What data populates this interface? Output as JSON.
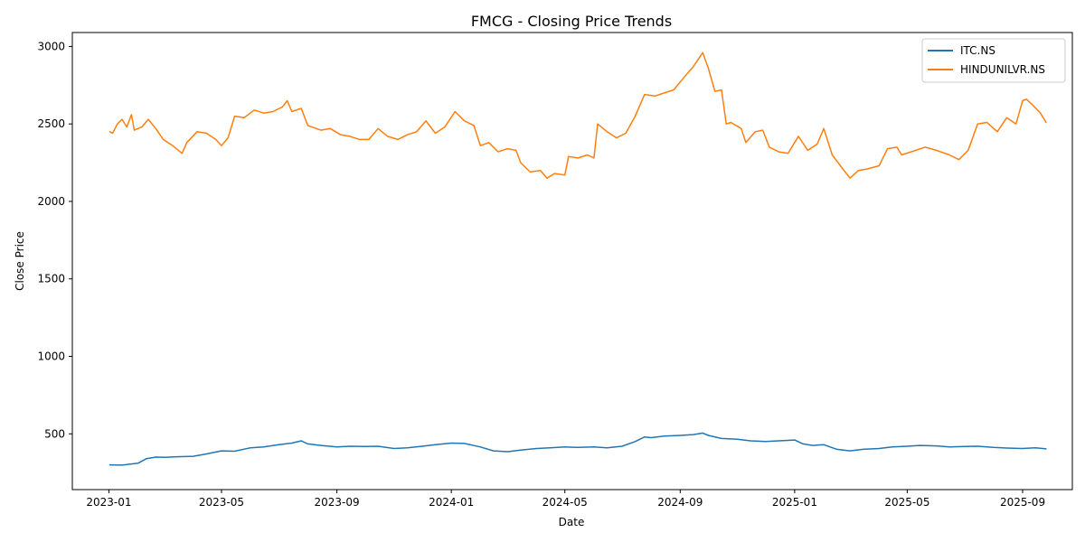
{
  "chart_data": {
    "type": "line",
    "title": "FMCG - Closing Price Trends",
    "xlabel": "Date",
    "ylabel": "Close Price",
    "x_range": [
      "2022-11-23",
      "2025-10-24"
    ],
    "ylim": [
      140,
      3090
    ],
    "x_ticks": [
      "2023-01",
      "2023-05",
      "2023-09",
      "2024-01",
      "2024-05",
      "2024-09",
      "2025-01",
      "2025-05",
      "2025-09"
    ],
    "y_ticks": [
      500,
      1000,
      1500,
      2000,
      2500,
      3000
    ],
    "grid": false,
    "legend_position": "upper right",
    "series": [
      {
        "name": "ITC.NS",
        "color": "#1f77b4",
        "points": [
          [
            "2023-01-02",
            300
          ],
          [
            "2023-01-15",
            298
          ],
          [
            "2023-02-01",
            310
          ],
          [
            "2023-02-10",
            340
          ],
          [
            "2023-02-20",
            350
          ],
          [
            "2023-03-01",
            348
          ],
          [
            "2023-03-15",
            352
          ],
          [
            "2023-04-01",
            355
          ],
          [
            "2023-04-15",
            370
          ],
          [
            "2023-05-01",
            390
          ],
          [
            "2023-05-15",
            388
          ],
          [
            "2023-06-01",
            410
          ],
          [
            "2023-06-15",
            415
          ],
          [
            "2023-07-01",
            430
          ],
          [
            "2023-07-15",
            440
          ],
          [
            "2023-07-25",
            455
          ],
          [
            "2023-08-01",
            435
          ],
          [
            "2023-08-15",
            425
          ],
          [
            "2023-09-01",
            415
          ],
          [
            "2023-09-15",
            420
          ],
          [
            "2023-10-01",
            418
          ],
          [
            "2023-10-15",
            420
          ],
          [
            "2023-11-01",
            405
          ],
          [
            "2023-11-15",
            410
          ],
          [
            "2023-12-01",
            420
          ],
          [
            "2023-12-15",
            430
          ],
          [
            "2024-01-01",
            440
          ],
          [
            "2024-01-15",
            438
          ],
          [
            "2024-02-01",
            415
          ],
          [
            "2024-02-15",
            390
          ],
          [
            "2024-03-01",
            385
          ],
          [
            "2024-03-15",
            395
          ],
          [
            "2024-04-01",
            405
          ],
          [
            "2024-04-15",
            410
          ],
          [
            "2024-05-01",
            415
          ],
          [
            "2024-05-15",
            412
          ],
          [
            "2024-06-01",
            415
          ],
          [
            "2024-06-15",
            410
          ],
          [
            "2024-07-01",
            420
          ],
          [
            "2024-07-15",
            450
          ],
          [
            "2024-07-25",
            480
          ],
          [
            "2024-08-01",
            475
          ],
          [
            "2024-08-15",
            485
          ],
          [
            "2024-09-01",
            490
          ],
          [
            "2024-09-15",
            495
          ],
          [
            "2024-09-25",
            505
          ],
          [
            "2024-10-01",
            490
          ],
          [
            "2024-10-15",
            470
          ],
          [
            "2024-11-01",
            465
          ],
          [
            "2024-11-15",
            455
          ],
          [
            "2024-12-01",
            450
          ],
          [
            "2024-12-15",
            455
          ],
          [
            "2025-01-01",
            460
          ],
          [
            "2025-01-10",
            435
          ],
          [
            "2025-01-20",
            425
          ],
          [
            "2025-02-01",
            430
          ],
          [
            "2025-02-15",
            400
          ],
          [
            "2025-03-01",
            390
          ],
          [
            "2025-03-15",
            400
          ],
          [
            "2025-04-01",
            405
          ],
          [
            "2025-04-15",
            415
          ],
          [
            "2025-05-01",
            420
          ],
          [
            "2025-05-15",
            425
          ],
          [
            "2025-06-01",
            422
          ],
          [
            "2025-06-15",
            415
          ],
          [
            "2025-07-01",
            418
          ],
          [
            "2025-07-15",
            420
          ],
          [
            "2025-08-01",
            412
          ],
          [
            "2025-08-15",
            408
          ],
          [
            "2025-09-01",
            405
          ],
          [
            "2025-09-15",
            410
          ],
          [
            "2025-09-26",
            403
          ]
        ]
      },
      {
        "name": "HINDUNILVR.NS",
        "color": "#ff7f0e",
        "points": [
          [
            "2023-01-02",
            2450
          ],
          [
            "2023-01-05",
            2440
          ],
          [
            "2023-01-10",
            2500
          ],
          [
            "2023-01-15",
            2530
          ],
          [
            "2023-01-20",
            2480
          ],
          [
            "2023-01-25",
            2560
          ],
          [
            "2023-01-28",
            2460
          ],
          [
            "2023-02-05",
            2480
          ],
          [
            "2023-02-12",
            2530
          ],
          [
            "2023-02-20",
            2470
          ],
          [
            "2023-02-28",
            2400
          ],
          [
            "2023-03-10",
            2360
          ],
          [
            "2023-03-20",
            2310
          ],
          [
            "2023-03-25",
            2380
          ],
          [
            "2023-04-05",
            2450
          ],
          [
            "2023-04-15",
            2440
          ],
          [
            "2023-04-25",
            2400
          ],
          [
            "2023-05-01",
            2360
          ],
          [
            "2023-05-08",
            2410
          ],
          [
            "2023-05-15",
            2550
          ],
          [
            "2023-05-25",
            2540
          ],
          [
            "2023-06-05",
            2590
          ],
          [
            "2023-06-15",
            2570
          ],
          [
            "2023-06-25",
            2580
          ],
          [
            "2023-07-05",
            2610
          ],
          [
            "2023-07-10",
            2650
          ],
          [
            "2023-07-15",
            2580
          ],
          [
            "2023-07-25",
            2600
          ],
          [
            "2023-08-01",
            2490
          ],
          [
            "2023-08-15",
            2460
          ],
          [
            "2023-08-25",
            2470
          ],
          [
            "2023-09-05",
            2430
          ],
          [
            "2023-09-15",
            2420
          ],
          [
            "2023-09-25",
            2400
          ],
          [
            "2023-10-05",
            2400
          ],
          [
            "2023-10-15",
            2470
          ],
          [
            "2023-10-25",
            2420
          ],
          [
            "2023-11-05",
            2400
          ],
          [
            "2023-11-15",
            2430
          ],
          [
            "2023-11-25",
            2450
          ],
          [
            "2023-12-05",
            2520
          ],
          [
            "2023-12-15",
            2440
          ],
          [
            "2023-12-25",
            2480
          ],
          [
            "2024-01-05",
            2580
          ],
          [
            "2024-01-15",
            2520
          ],
          [
            "2024-01-25",
            2490
          ],
          [
            "2024-02-01",
            2360
          ],
          [
            "2024-02-10",
            2380
          ],
          [
            "2024-02-20",
            2320
          ],
          [
            "2024-03-01",
            2340
          ],
          [
            "2024-03-10",
            2330
          ],
          [
            "2024-03-15",
            2250
          ],
          [
            "2024-03-25",
            2190
          ],
          [
            "2024-04-05",
            2200
          ],
          [
            "2024-04-12",
            2150
          ],
          [
            "2024-04-20",
            2180
          ],
          [
            "2024-05-01",
            2170
          ],
          [
            "2024-05-05",
            2290
          ],
          [
            "2024-05-15",
            2280
          ],
          [
            "2024-05-25",
            2300
          ],
          [
            "2024-06-01",
            2280
          ],
          [
            "2024-06-05",
            2500
          ],
          [
            "2024-06-15",
            2450
          ],
          [
            "2024-06-25",
            2410
          ],
          [
            "2024-07-05",
            2440
          ],
          [
            "2024-07-15",
            2550
          ],
          [
            "2024-07-25",
            2690
          ],
          [
            "2024-08-05",
            2680
          ],
          [
            "2024-08-15",
            2700
          ],
          [
            "2024-08-25",
            2720
          ],
          [
            "2024-09-05",
            2800
          ],
          [
            "2024-09-15",
            2870
          ],
          [
            "2024-09-25",
            2960
          ],
          [
            "2024-10-01",
            2860
          ],
          [
            "2024-10-08",
            2710
          ],
          [
            "2024-10-15",
            2720
          ],
          [
            "2024-10-20",
            2500
          ],
          [
            "2024-10-25",
            2510
          ],
          [
            "2024-11-05",
            2470
          ],
          [
            "2024-11-10",
            2380
          ],
          [
            "2024-11-20",
            2450
          ],
          [
            "2024-11-28",
            2460
          ],
          [
            "2024-12-05",
            2350
          ],
          [
            "2024-12-15",
            2320
          ],
          [
            "2024-12-25",
            2310
          ],
          [
            "2025-01-05",
            2420
          ],
          [
            "2025-01-15",
            2330
          ],
          [
            "2025-01-25",
            2370
          ],
          [
            "2025-02-01",
            2470
          ],
          [
            "2025-02-10",
            2300
          ],
          [
            "2025-02-20",
            2220
          ],
          [
            "2025-03-01",
            2150
          ],
          [
            "2025-03-10",
            2200
          ],
          [
            "2025-03-20",
            2210
          ],
          [
            "2025-04-01",
            2230
          ],
          [
            "2025-04-10",
            2340
          ],
          [
            "2025-04-20",
            2350
          ],
          [
            "2025-04-25",
            2300
          ],
          [
            "2025-05-10",
            2330
          ],
          [
            "2025-05-20",
            2350
          ],
          [
            "2025-06-01",
            2330
          ],
          [
            "2025-06-15",
            2300
          ],
          [
            "2025-06-25",
            2270
          ],
          [
            "2025-07-05",
            2330
          ],
          [
            "2025-07-15",
            2500
          ],
          [
            "2025-07-25",
            2510
          ],
          [
            "2025-08-05",
            2450
          ],
          [
            "2025-08-15",
            2540
          ],
          [
            "2025-08-25",
            2500
          ],
          [
            "2025-09-01",
            2650
          ],
          [
            "2025-09-05",
            2660
          ],
          [
            "2025-09-12",
            2620
          ],
          [
            "2025-09-20",
            2570
          ],
          [
            "2025-09-26",
            2510
          ]
        ]
      }
    ]
  }
}
